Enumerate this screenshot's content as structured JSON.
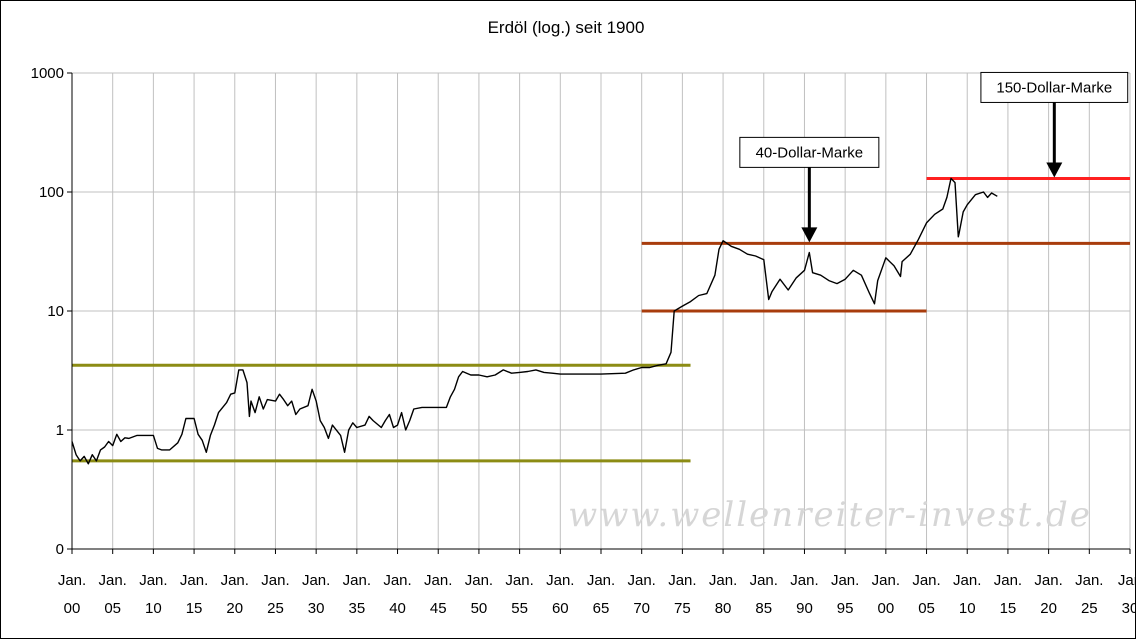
{
  "chart_data": {
    "type": "line",
    "title": "Erdöl (log.) seit 1900",
    "xlabel": "",
    "ylabel": "",
    "y_scale": "log",
    "y_ticks": [
      {
        "label": "1000",
        "value": 1000
      },
      {
        "label": "100",
        "value": 100
      },
      {
        "label": "10",
        "value": 10
      },
      {
        "label": "1",
        "value": 1
      },
      {
        "label": "0",
        "value": 0.1
      }
    ],
    "ylim": [
      0.1,
      1000
    ],
    "xlim": [
      1900,
      2030
    ],
    "x_ticks": [
      {
        "top": "Jan.",
        "bottom": "00",
        "year": 1900
      },
      {
        "top": "Jan.",
        "bottom": "05",
        "year": 1905
      },
      {
        "top": "Jan.",
        "bottom": "10",
        "year": 1910
      },
      {
        "top": "Jan.",
        "bottom": "15",
        "year": 1915
      },
      {
        "top": "Jan.",
        "bottom": "20",
        "year": 1920
      },
      {
        "top": "Jan.",
        "bottom": "25",
        "year": 1925
      },
      {
        "top": "Jan.",
        "bottom": "30",
        "year": 1930
      },
      {
        "top": "Jan.",
        "bottom": "35",
        "year": 1935
      },
      {
        "top": "Jan.",
        "bottom": "40",
        "year": 1940
      },
      {
        "top": "Jan.",
        "bottom": "45",
        "year": 1945
      },
      {
        "top": "Jan.",
        "bottom": "50",
        "year": 1950
      },
      {
        "top": "Jan.",
        "bottom": "55",
        "year": 1955
      },
      {
        "top": "Jan.",
        "bottom": "60",
        "year": 1960
      },
      {
        "top": "Jan.",
        "bottom": "65",
        "year": 1965
      },
      {
        "top": "Jan.",
        "bottom": "70",
        "year": 1970
      },
      {
        "top": "Jan.",
        "bottom": "75",
        "year": 1975
      },
      {
        "top": "Jan.",
        "bottom": "80",
        "year": 1980
      },
      {
        "top": "Jan.",
        "bottom": "85",
        "year": 1985
      },
      {
        "top": "Jan.",
        "bottom": "90",
        "year": 1990
      },
      {
        "top": "Jan.",
        "bottom": "95",
        "year": 1995
      },
      {
        "top": "Jan.",
        "bottom": "00",
        "year": 2000
      },
      {
        "top": "Jan.",
        "bottom": "05",
        "year": 2005
      },
      {
        "top": "Jan.",
        "bottom": "10",
        "year": 2010
      },
      {
        "top": "Jan.",
        "bottom": "15",
        "year": 2015
      },
      {
        "top": "Jan.",
        "bottom": "20",
        "year": 2020
      },
      {
        "top": "Jan.",
        "bottom": "25",
        "year": 2025
      },
      {
        "top": "Jan",
        "bottom": "30",
        "year": 2030
      }
    ],
    "grid": true,
    "series": [
      {
        "color": "#000000",
        "points": [
          [
            1900.0,
            0.8
          ],
          [
            1900.5,
            0.62
          ],
          [
            1901,
            0.55
          ],
          [
            1901.5,
            0.6
          ],
          [
            1902,
            0.52
          ],
          [
            1902.5,
            0.62
          ],
          [
            1903,
            0.55
          ],
          [
            1903.5,
            0.68
          ],
          [
            1904,
            0.72
          ],
          [
            1904.5,
            0.8
          ],
          [
            1905,
            0.74
          ],
          [
            1905.5,
            0.92
          ],
          [
            1906,
            0.8
          ],
          [
            1906.5,
            0.86
          ],
          [
            1907,
            0.85
          ],
          [
            1908,
            0.9
          ],
          [
            1909,
            0.9
          ],
          [
            1910,
            0.9
          ],
          [
            1910.5,
            0.7
          ],
          [
            1911,
            0.68
          ],
          [
            1912,
            0.68
          ],
          [
            1913,
            0.78
          ],
          [
            1913.5,
            0.92
          ],
          [
            1914,
            1.25
          ],
          [
            1915,
            1.25
          ],
          [
            1915.5,
            0.92
          ],
          [
            1916,
            0.82
          ],
          [
            1916.5,
            0.65
          ],
          [
            1917,
            0.9
          ],
          [
            1917.5,
            1.1
          ],
          [
            1918,
            1.4
          ],
          [
            1919,
            1.7
          ],
          [
            1919.5,
            2.0
          ],
          [
            1920,
            2.05
          ],
          [
            1920.5,
            3.2
          ],
          [
            1921,
            3.2
          ],
          [
            1921.5,
            2.5
          ],
          [
            1921.8,
            1.3
          ],
          [
            1922,
            1.75
          ],
          [
            1922.5,
            1.4
          ],
          [
            1923,
            1.9
          ],
          [
            1923.5,
            1.5
          ],
          [
            1924,
            1.8
          ],
          [
            1925,
            1.75
          ],
          [
            1925.5,
            2.0
          ],
          [
            1926,
            1.8
          ],
          [
            1926.5,
            1.6
          ],
          [
            1927,
            1.75
          ],
          [
            1927.5,
            1.35
          ],
          [
            1928,
            1.5
          ],
          [
            1929,
            1.6
          ],
          [
            1929.5,
            2.2
          ],
          [
            1930,
            1.75
          ],
          [
            1930.5,
            1.2
          ],
          [
            1931,
            1.05
          ],
          [
            1931.5,
            0.85
          ],
          [
            1932,
            1.1
          ],
          [
            1933,
            0.9
          ],
          [
            1933.5,
            0.65
          ],
          [
            1934,
            1.0
          ],
          [
            1934.5,
            1.15
          ],
          [
            1935,
            1.05
          ],
          [
            1936,
            1.1
          ],
          [
            1936.5,
            1.3
          ],
          [
            1937,
            1.2
          ],
          [
            1938,
            1.05
          ],
          [
            1938.5,
            1.2
          ],
          [
            1939,
            1.35
          ],
          [
            1939.5,
            1.05
          ],
          [
            1940,
            1.1
          ],
          [
            1940.5,
            1.4
          ],
          [
            1941,
            1.0
          ],
          [
            1941.5,
            1.2
          ],
          [
            1942,
            1.5
          ],
          [
            1943,
            1.55
          ],
          [
            1945,
            1.55
          ],
          [
            1946,
            1.55
          ],
          [
            1946.5,
            1.9
          ],
          [
            1947,
            2.2
          ],
          [
            1947.5,
            2.8
          ],
          [
            1948,
            3.1
          ],
          [
            1949,
            2.9
          ],
          [
            1950,
            2.9
          ],
          [
            1951,
            2.8
          ],
          [
            1952,
            2.9
          ],
          [
            1953,
            3.2
          ],
          [
            1954,
            3.0
          ],
          [
            1955,
            3.05
          ],
          [
            1956,
            3.1
          ],
          [
            1957,
            3.2
          ],
          [
            1958,
            3.05
          ],
          [
            1959,
            3.0
          ],
          [
            1960,
            2.95
          ],
          [
            1962,
            2.95
          ],
          [
            1965,
            2.95
          ],
          [
            1968,
            3.0
          ],
          [
            1969,
            3.2
          ],
          [
            1970,
            3.35
          ],
          [
            1971,
            3.35
          ],
          [
            1972,
            3.5
          ],
          [
            1973,
            3.6
          ],
          [
            1973.6,
            4.5
          ],
          [
            1974,
            10.0
          ],
          [
            1975,
            11.0
          ],
          [
            1976,
            12.0
          ],
          [
            1977,
            13.5
          ],
          [
            1978,
            14.0
          ],
          [
            1979,
            20.0
          ],
          [
            1979.5,
            33.0
          ],
          [
            1980,
            39.0
          ],
          [
            1981,
            35.0
          ],
          [
            1982,
            33.0
          ],
          [
            1983,
            30.0
          ],
          [
            1984,
            29.0
          ],
          [
            1985,
            27.0
          ],
          [
            1985.6,
            12.5
          ],
          [
            1986,
            14.5
          ],
          [
            1987,
            18.5
          ],
          [
            1988,
            15.0
          ],
          [
            1989,
            19.0
          ],
          [
            1990,
            22.0
          ],
          [
            1990.6,
            31.0
          ],
          [
            1991,
            21.0
          ],
          [
            1992,
            20.0
          ],
          [
            1993,
            18.0
          ],
          [
            1994,
            17.0
          ],
          [
            1995,
            18.5
          ],
          [
            1996,
            22.0
          ],
          [
            1997,
            20.0
          ],
          [
            1998,
            14.0
          ],
          [
            1998.6,
            11.5
          ],
          [
            1999,
            18.0
          ],
          [
            2000,
            28.0
          ],
          [
            2001,
            24.0
          ],
          [
            2001.8,
            19.5
          ],
          [
            2002,
            26.0
          ],
          [
            2003,
            30.0
          ],
          [
            2004,
            40.0
          ],
          [
            2005,
            55.0
          ],
          [
            2006,
            65.0
          ],
          [
            2007,
            72.0
          ],
          [
            2007.5,
            90.0
          ],
          [
            2008,
            130.0
          ],
          [
            2008.5,
            120.0
          ],
          [
            2008.9,
            42.0
          ],
          [
            2009,
            45.0
          ],
          [
            2009.5,
            68.0
          ],
          [
            2010,
            78.0
          ],
          [
            2011,
            95.0
          ],
          [
            2012,
            100.0
          ],
          [
            2012.5,
            90.0
          ],
          [
            2013,
            98.0
          ],
          [
            2013.7,
            92.0
          ]
        ]
      }
    ],
    "reference_lines": [
      {
        "value": 3.5,
        "from": 1900,
        "to": 1976,
        "color": "#8c8c14"
      },
      {
        "value": 0.55,
        "from": 1900,
        "to": 1976,
        "color": "#8c8c14"
      },
      {
        "value": 37,
        "from": 1970,
        "to": 2030,
        "color": "#a83c0c"
      },
      {
        "value": 10,
        "from": 1970,
        "to": 2005,
        "color": "#a83c0c"
      },
      {
        "value": 130,
        "from": 2005,
        "to": 2030,
        "color": "#ff2020"
      }
    ],
    "annotations": [
      {
        "text": "40-Dollar-Marke",
        "target_year": 1990.6,
        "target_value": 37
      },
      {
        "text": "150-Dollar-Marke",
        "target_year": 2020.7,
        "target_value": 130
      }
    ],
    "watermark": "www.wellenreiter-invest.de"
  }
}
